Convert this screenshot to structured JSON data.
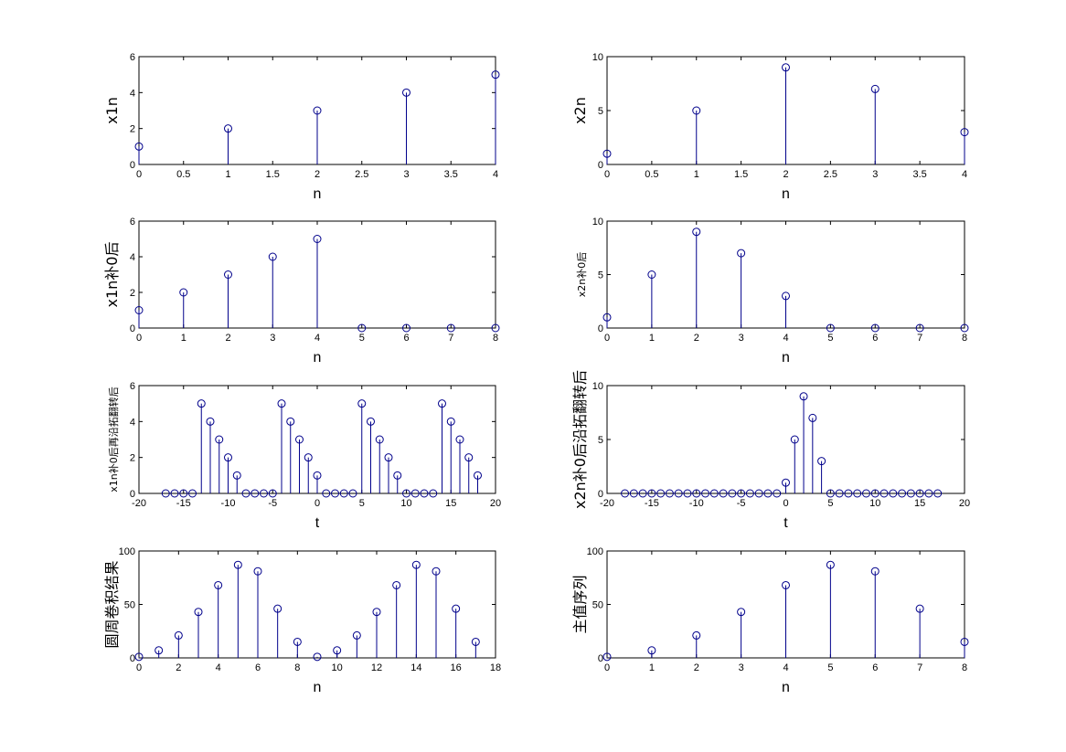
{
  "colors": {
    "stem": "#00008b",
    "axes": "#000000",
    "background": "#ffffff"
  },
  "chart_data": [
    {
      "type": "stem",
      "x": [
        0,
        1,
        2,
        3,
        4
      ],
      "y": [
        1,
        2,
        3,
        4,
        5
      ],
      "xlim": [
        0,
        4
      ],
      "ylim": [
        0,
        6
      ],
      "xticks": [
        0,
        0.5,
        1,
        1.5,
        2,
        2.5,
        3,
        3.5,
        4
      ],
      "xtick_labels": [
        "0",
        "0.5",
        "1",
        "1.5",
        "2",
        "2.5",
        "3",
        "3.5",
        "4"
      ],
      "yticks": [
        0,
        2,
        4,
        6
      ],
      "ytick_labels": [
        "0",
        "2",
        "4",
        "6"
      ],
      "xlabel": "n",
      "ylabel": "x1n"
    },
    {
      "type": "stem",
      "x": [
        0,
        1,
        2,
        3,
        4
      ],
      "y": [
        1,
        5,
        9,
        7,
        3
      ],
      "xlim": [
        0,
        4
      ],
      "ylim": [
        0,
        10
      ],
      "xticks": [
        0,
        0.5,
        1,
        1.5,
        2,
        2.5,
        3,
        3.5,
        4
      ],
      "xtick_labels": [
        "0",
        "0.5",
        "1",
        "1.5",
        "2",
        "2.5",
        "3",
        "3.5",
        "4"
      ],
      "yticks": [
        0,
        5,
        10
      ],
      "ytick_labels": [
        "0",
        "5",
        "10"
      ],
      "xlabel": "n",
      "ylabel": "x2n"
    },
    {
      "type": "stem",
      "x": [
        0,
        1,
        2,
        3,
        4,
        5,
        6,
        7,
        8
      ],
      "y": [
        1,
        2,
        3,
        4,
        5,
        0,
        0,
        0,
        0
      ],
      "xlim": [
        0,
        8
      ],
      "ylim": [
        0,
        6
      ],
      "xticks": [
        0,
        1,
        2,
        3,
        4,
        5,
        6,
        7,
        8
      ],
      "xtick_labels": [
        "0",
        "1",
        "2",
        "3",
        "4",
        "5",
        "6",
        "7",
        "8"
      ],
      "yticks": [
        0,
        2,
        4,
        6
      ],
      "ytick_labels": [
        "0",
        "2",
        "4",
        "6"
      ],
      "xlabel": "n",
      "ylabel": "x1n补0后"
    },
    {
      "type": "stem",
      "x": [
        0,
        1,
        2,
        3,
        4,
        5,
        6,
        7,
        8
      ],
      "y": [
        1,
        5,
        9,
        7,
        3,
        0,
        0,
        0,
        0
      ],
      "xlim": [
        0,
        8
      ],
      "ylim": [
        0,
        10
      ],
      "xticks": [
        0,
        1,
        2,
        3,
        4,
        5,
        6,
        7,
        8
      ],
      "xtick_labels": [
        "0",
        "1",
        "2",
        "3",
        "4",
        "5",
        "6",
        "7",
        "8"
      ],
      "yticks": [
        0,
        5,
        10
      ],
      "ytick_labels": [
        "0",
        "5",
        "10"
      ],
      "xlabel": "n",
      "ylabel": "x2n补0后"
    },
    {
      "type": "stem",
      "x": [
        -17,
        -16,
        -15,
        -14,
        -13,
        -12,
        -11,
        -10,
        -9,
        -8,
        -7,
        -6,
        -5,
        -4,
        -3,
        -2,
        -1,
        0,
        1,
        2,
        3,
        4,
        5,
        6,
        7,
        8,
        9,
        10,
        11,
        12,
        13,
        14,
        15,
        16,
        17,
        18
      ],
      "y": [
        0,
        0,
        0,
        0,
        5,
        4,
        3,
        2,
        1,
        0,
        0,
        0,
        0,
        5,
        4,
        3,
        2,
        1,
        0,
        0,
        0,
        0,
        5,
        4,
        3,
        2,
        1,
        0,
        0,
        0,
        0,
        5,
        4,
        3,
        2,
        1
      ],
      "xlim": [
        -20,
        20
      ],
      "ylim": [
        0,
        6
      ],
      "xticks": [
        -20,
        -15,
        -10,
        -5,
        0,
        5,
        10,
        15,
        20
      ],
      "xtick_labels": [
        "-20",
        "-15",
        "-10",
        "-5",
        "0",
        "5",
        "10",
        "15",
        "20"
      ],
      "yticks": [
        0,
        2,
        4,
        6
      ],
      "ytick_labels": [
        "0",
        "2",
        "4",
        "6"
      ],
      "xlabel": "t",
      "ylabel": "x1n补0后再沿拓翻转后"
    },
    {
      "type": "stem",
      "x": [
        -18,
        -17,
        -16,
        -15,
        -14,
        -13,
        -12,
        -11,
        -10,
        -9,
        -8,
        -7,
        -6,
        -5,
        -4,
        -3,
        -2,
        -1,
        0,
        1,
        2,
        3,
        4,
        5,
        6,
        7,
        8,
        9,
        10,
        11,
        12,
        13,
        14,
        15,
        16,
        17
      ],
      "y": [
        0,
        0,
        0,
        0,
        0,
        0,
        0,
        0,
        0,
        0,
        0,
        0,
        0,
        0,
        0,
        0,
        0,
        0,
        1,
        5,
        9,
        7,
        3,
        0,
        0,
        0,
        0,
        0,
        0,
        0,
        0,
        0,
        0,
        0,
        0,
        0
      ],
      "xlim": [
        -20,
        20
      ],
      "ylim": [
        0,
        10
      ],
      "xticks": [
        -20,
        -15,
        -10,
        -5,
        0,
        5,
        10,
        15,
        20
      ],
      "xtick_labels": [
        "-20",
        "-15",
        "-10",
        "-5",
        "0",
        "5",
        "10",
        "15",
        "20"
      ],
      "yticks": [
        0,
        5,
        10
      ],
      "ytick_labels": [
        "0",
        "5",
        "10"
      ],
      "xlabel": "t",
      "ylabel": "x2n补0后沿拓翻转后"
    },
    {
      "type": "stem",
      "x": [
        0,
        1,
        2,
        3,
        4,
        5,
        6,
        7,
        8,
        9,
        10,
        11,
        12,
        13,
        14,
        15,
        16,
        17
      ],
      "y": [
        1,
        7,
        21,
        43,
        68,
        87,
        81,
        46,
        15,
        1,
        7,
        21,
        43,
        68,
        87,
        81,
        46,
        15
      ],
      "xlim": [
        0,
        18
      ],
      "ylim": [
        0,
        100
      ],
      "xticks": [
        0,
        2,
        4,
        6,
        8,
        10,
        12,
        14,
        16,
        18
      ],
      "xtick_labels": [
        "0",
        "2",
        "4",
        "6",
        "8",
        "10",
        "12",
        "14",
        "16",
        "18"
      ],
      "yticks": [
        0,
        50,
        100
      ],
      "ytick_labels": [
        "0",
        "50",
        "100"
      ],
      "xlabel": "n",
      "ylabel": "圆周卷积结果"
    },
    {
      "type": "stem",
      "x": [
        0,
        1,
        2,
        3,
        4,
        5,
        6,
        7,
        8
      ],
      "y": [
        1,
        7,
        21,
        43,
        68,
        87,
        81,
        46,
        15
      ],
      "xlim": [
        0,
        8
      ],
      "ylim": [
        0,
        100
      ],
      "xticks": [
        0,
        1,
        2,
        3,
        4,
        5,
        6,
        7,
        8
      ],
      "xtick_labels": [
        "0",
        "1",
        "2",
        "3",
        "4",
        "5",
        "6",
        "7",
        "8"
      ],
      "yticks": [
        0,
        50,
        100
      ],
      "ytick_labels": [
        "0",
        "50",
        "100"
      ],
      "xlabel": "n",
      "ylabel": "主值序列"
    }
  ]
}
